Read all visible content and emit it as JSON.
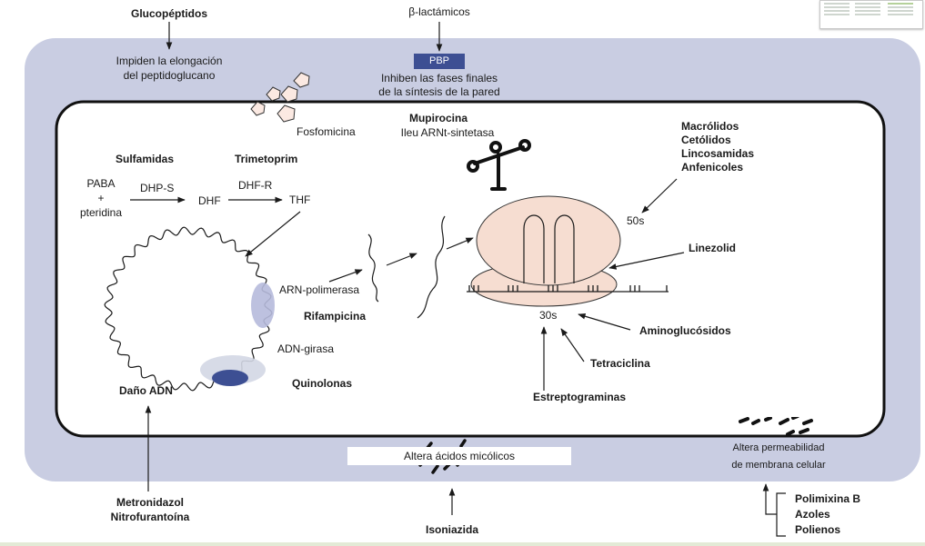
{
  "top": {
    "glucopeptidos": "Glucopéptidos",
    "glucopeptidos_action": [
      "Impiden la elongación",
      "del peptidoglucano"
    ],
    "betalactamicos": "β-lactámicos",
    "pbp": "PBP",
    "betalactamicos_action": [
      "Inhiben las fases finales",
      "de la síntesis de la pared"
    ]
  },
  "fosfomicina": "Fosfomicina",
  "folate": {
    "sulfamidas": "Sulfamidas",
    "trimetoprim": "Trimetoprim",
    "paba": [
      "PABA",
      "+",
      "pteridina"
    ],
    "dhps": "DHP-S",
    "dhf": "DHF",
    "dhfr": "DHF-R",
    "thf": "THF"
  },
  "dna": {
    "arn_polimerasa": "ARN-polimerasa",
    "rifampicina": "Rifampicina",
    "adn_girasa": "ADN-girasa",
    "quinolonas": "Quinolonas",
    "dano_adn": "Daño ADN"
  },
  "ribosome": {
    "mupirocina": "Mupirocina",
    "ileu": "Ileu ARNt-sintetasa",
    "macrolidos": [
      "Macrólidos",
      "Cetólidos",
      "Lincosamidas",
      "Anfenicoles"
    ],
    "s50": "50s",
    "linezolid": "Linezolid",
    "s30": "30s",
    "aminoglucosidos": "Aminoglucósidos",
    "tetraciclina": "Tetraciclina",
    "estreptograminas": "Estreptograminas"
  },
  "membrane": {
    "acidos_micolicos": "Altera ácidos micólicos",
    "isoniazida": "Isoniazida",
    "permeabilidad": [
      "Altera permeabilidad",
      "de membrana celular"
    ],
    "polimixina": [
      "Polimixina B",
      "Azoles",
      "Polienos"
    ]
  },
  "bottom_left": [
    "Metronidazol",
    "Nitrofurantoína"
  ],
  "colors": {
    "outer_wall": "#c9cde2",
    "ribosome": "#f6ddd1",
    "enzyme_light": "#b6badb",
    "enzyme_dark": "#3d4f93",
    "pentagon": "#fbe9e2"
  }
}
